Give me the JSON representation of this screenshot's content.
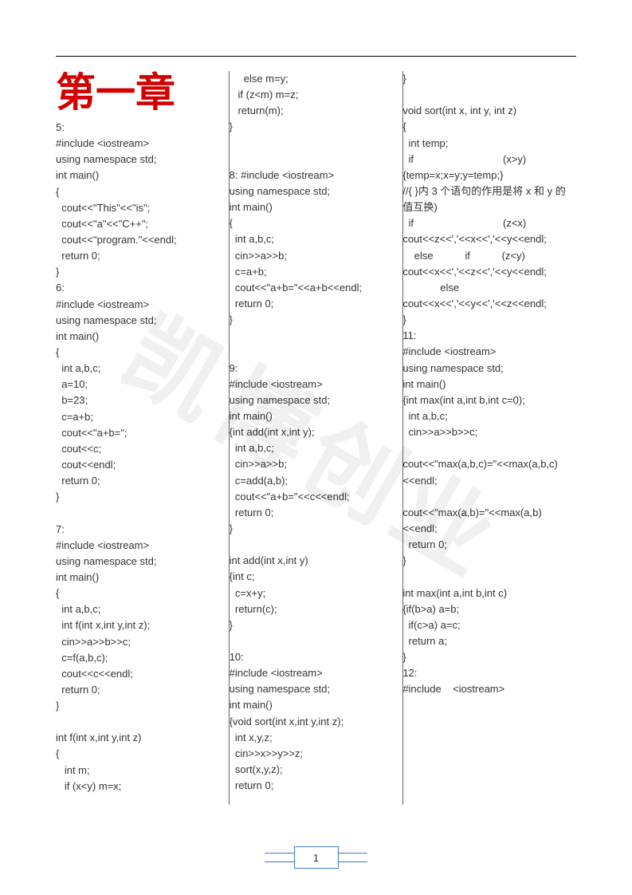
{
  "watermark_text": "凯博创业",
  "chapter_title": "第一章",
  "page_number": "1",
  "colors": {
    "title_color": "#d40000",
    "rule_color": "#666666",
    "banner_border": "#3a78c9",
    "text_color": "#333333",
    "background": "#ffffff",
    "watermark_color": "rgba(0,0,0,0.06)"
  },
  "lines": [
    {
      "t": "5:"
    },
    {
      "t": "#include <iostream>"
    },
    {
      "t": "using namespace std;"
    },
    {
      "t": "int main()"
    },
    {
      "t": "{"
    },
    {
      "t": "  cout<<\"This\"<<\"is\";"
    },
    {
      "t": "  cout<<\"a\"<<\"C++\";"
    },
    {
      "t": "  cout<<\"program.\"<<endl;"
    },
    {
      "t": "  return 0;"
    },
    {
      "t": "}"
    },
    {
      "t": "6:"
    },
    {
      "t": "#include <iostream>"
    },
    {
      "t": "using namespace std;"
    },
    {
      "t": "int main()"
    },
    {
      "t": "{"
    },
    {
      "t": "  int a,b,c;"
    },
    {
      "t": "  a=10;"
    },
    {
      "t": "  b=23;"
    },
    {
      "t": "  c=a+b;"
    },
    {
      "t": "  cout<<\"a+b=\";"
    },
    {
      "t": "  cout<<c;"
    },
    {
      "t": "  cout<<endl;"
    },
    {
      "t": "  return 0;"
    },
    {
      "t": "}"
    },
    {
      "t": ""
    },
    {
      "t": "7:"
    },
    {
      "t": "#include <iostream>"
    },
    {
      "t": "using namespace std;"
    },
    {
      "t": "int main()"
    },
    {
      "t": "{"
    },
    {
      "t": "  int a,b,c;"
    },
    {
      "t": "  int f(int x,int y,int z);"
    },
    {
      "t": "  cin>>a>>b>>c;"
    },
    {
      "t": "  c=f(a,b,c);"
    },
    {
      "t": "  cout<<c<<endl;"
    },
    {
      "t": "  return 0;"
    },
    {
      "t": "}"
    },
    {
      "t": ""
    },
    {
      "t": "int f(int x,int y,int z)"
    },
    {
      "t": "{"
    },
    {
      "t": "   int m;"
    },
    {
      "t": "   if (x<y) m=x;"
    },
    {
      "t": "     else m=y;"
    },
    {
      "t": "   if (z<m) m=z;"
    },
    {
      "t": "   return(m);"
    },
    {
      "t": "}"
    },
    {
      "t": ""
    },
    {
      "t": ""
    },
    {
      "t": "8: #include <iostream>"
    },
    {
      "t": "using namespace std;"
    },
    {
      "t": "int main()"
    },
    {
      "t": "{"
    },
    {
      "t": "  int a,b,c;"
    },
    {
      "t": "  cin>>a>>b;"
    },
    {
      "t": "  c=a+b;"
    },
    {
      "t": "  cout<<\"a+b=\"<<a+b<<endl;"
    },
    {
      "t": "  return 0;"
    },
    {
      "t": "}"
    },
    {
      "t": ""
    },
    {
      "t": ""
    },
    {
      "t": "9:"
    },
    {
      "t": "#include <iostream>"
    },
    {
      "t": "using namespace std;"
    },
    {
      "t": "int main()"
    },
    {
      "t": "{int add(int x,int y);"
    },
    {
      "t": "  int a,b,c;"
    },
    {
      "t": "  cin>>a>>b;"
    },
    {
      "t": "  c=add(a,b);"
    },
    {
      "t": "  cout<<\"a+b=\"<<c<<endl;"
    },
    {
      "t": "  return 0;"
    },
    {
      "t": "}"
    },
    {
      "t": ""
    },
    {
      "t": "int add(int x,int y)"
    },
    {
      "t": "{int c;"
    },
    {
      "t": "  c=x+y;"
    },
    {
      "t": "  return(c);"
    },
    {
      "t": "}"
    },
    {
      "t": ""
    },
    {
      "t": "10:"
    },
    {
      "t": "#include <iostream>"
    },
    {
      "t": "using namespace std;"
    },
    {
      "t": "int main()"
    },
    {
      "t": "{void sort(int x,int y,int z);"
    },
    {
      "t": "  int x,y,z;"
    },
    {
      "t": "  cin>>x>>y>>z;"
    },
    {
      "t": "  sort(x,y,z);"
    },
    {
      "t": "  return 0;"
    },
    {
      "t": "}"
    },
    {
      "t": ""
    },
    {
      "t": "void sort(int x, int y, int z)"
    },
    {
      "t": "{"
    },
    {
      "t": "  int temp;"
    },
    {
      "t": "  if                               (x>y) {temp=x;x=y;y=temp;}"
    },
    {
      "t": "//{ }内 3 个语句的作用是将 x 和 y 的值互换)"
    },
    {
      "t": "  if                               (z<x) cout<<z<<','<<x<<','<<y<<endl;"
    },
    {
      "t": "    else           if           (z<y) cout<<x<<','<<z<<','<<y<<endl;"
    },
    {
      "t": "             else  cout<<x<<','<<y<<','<<z<<endl;"
    },
    {
      "t": "}"
    },
    {
      "t": "11:"
    },
    {
      "t": "#include <iostream>"
    },
    {
      "t": "using namespace std;"
    },
    {
      "t": "int main()"
    },
    {
      "t": "{int max(int a,int b,int c=0);"
    },
    {
      "t": "  int a,b,c;"
    },
    {
      "t": "  cin>>a>>b>>c;"
    },
    {
      "t": ""
    },
    {
      "t": "cout<<\"max(a,b,c)=\"<<max(a,b,c)<<endl;"
    },
    {
      "t": ""
    },
    {
      "t": "cout<<\"max(a,b)=\"<<max(a,b)<<endl;"
    },
    {
      "t": "  return 0;"
    },
    {
      "t": "}"
    },
    {
      "t": ""
    },
    {
      "t": "int max(int a,int b,int c)"
    },
    {
      "t": "{if(b>a) a=b;"
    },
    {
      "t": "  if(c>a) a=c;"
    },
    {
      "t": "  return a;"
    },
    {
      "t": "}"
    },
    {
      "t": "12:"
    },
    {
      "t": "#include    <iostream>"
    }
  ]
}
